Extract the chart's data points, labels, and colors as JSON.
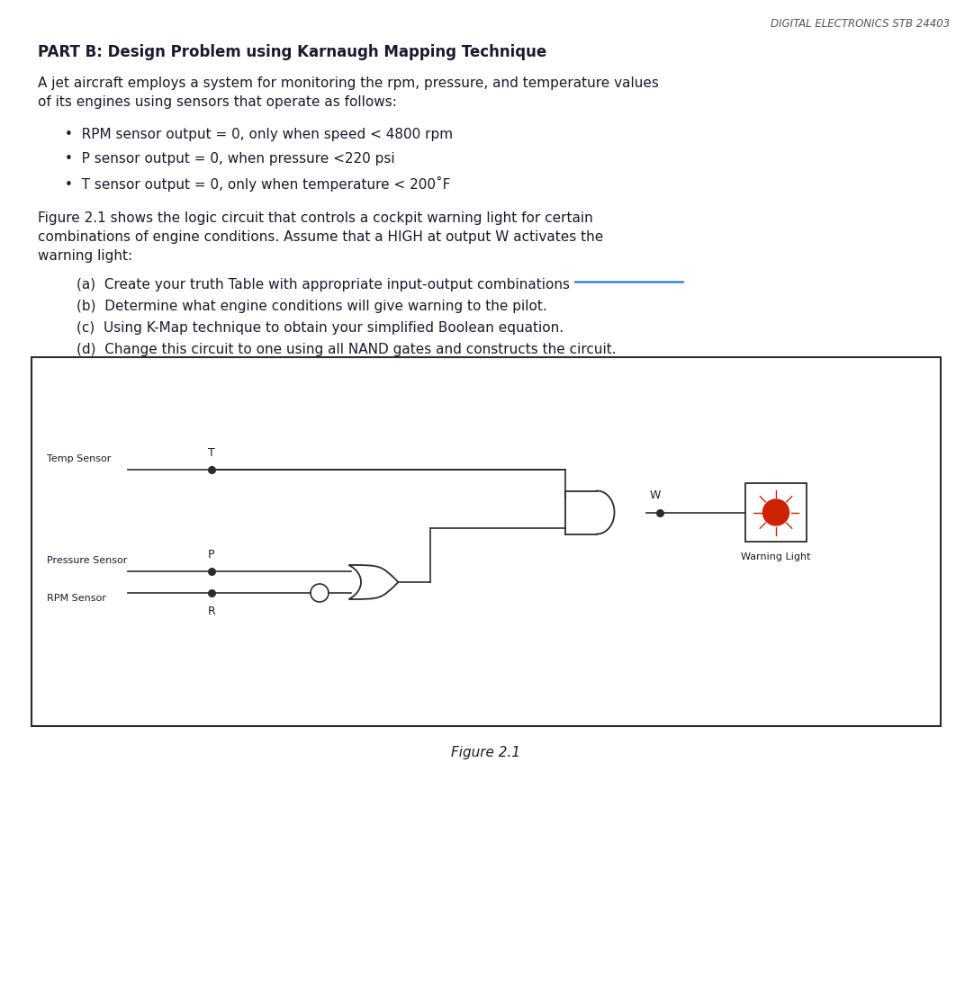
{
  "header": "DIGITAL ELECTRONICS STB 24403",
  "title": "PART B: Design Problem using Karnaugh Mapping Technique",
  "intro": "A jet aircraft employs a system for monitoring the rpm, pressure, and temperature values\nof its engines using sensors that operate as follows:",
  "bullets": [
    "RPM sensor output = 0, only when speed < 4800 rpm",
    "P sensor output = 0, when pressure <220 psi",
    "T sensor output = 0, only when temperature < 200˚F"
  ],
  "para2": "Figure 2.1 shows the logic circuit that controls a cockpit warning light for certain\ncombinations of engine conditions. Assume that a HIGH at output W activates the\nwarning light:",
  "items": [
    "(a)  Create your truth Table with appropriate input-output combinations",
    "(b)  Determine what engine conditions will give warning to the pilot.",
    "(c)  Using K-Map technique to obtain your simplified Boolean equation.",
    "(d)  Change this circuit to one using all NAND gates and constructs the circuit."
  ],
  "item_a_underline": "combinations",
  "figure_caption": "Figure 2.1",
  "circuit_labels": {
    "T": "T",
    "P": "P",
    "R": "R",
    "W": "W",
    "temp_sensor": "Temp Sensor",
    "pressure_sensor": "Pressure Sensor",
    "rpm_sensor": "RPM Sensor",
    "warning_light": "Warning Light"
  },
  "bg_color": "#ffffff",
  "text_color": "#1a1a2e",
  "line_color": "#2c2c2c",
  "border_color": "#2c2c2c"
}
